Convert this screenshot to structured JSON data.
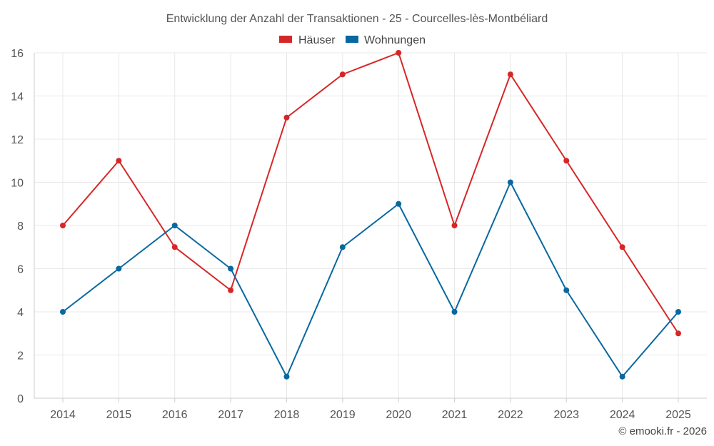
{
  "chart_data": {
    "type": "line",
    "title": "Entwicklung der Anzahl der Transaktionen - 25 - Courcelles-lès-Montbéliard",
    "categories": [
      "2014",
      "2015",
      "2016",
      "2017",
      "2018",
      "2019",
      "2020",
      "2021",
      "2022",
      "2023",
      "2024",
      "2025"
    ],
    "series": [
      {
        "name": "Häuser",
        "color": "#d62728",
        "values": [
          8,
          11,
          7,
          5,
          13,
          15,
          16,
          8,
          15,
          11,
          7,
          3
        ]
      },
      {
        "name": "Wohnungen",
        "color": "#0868a0",
        "values": [
          4,
          6,
          8,
          6,
          1,
          7,
          9,
          4,
          10,
          5,
          1,
          4
        ]
      }
    ],
    "ylim": [
      0,
      16
    ],
    "yticks": [
      0,
      2,
      4,
      6,
      8,
      10,
      12,
      14,
      16
    ],
    "xlabel": "",
    "ylabel": "",
    "grid": true,
    "legend_position": "top-center"
  },
  "credit": "© emooki.fr - 2026"
}
